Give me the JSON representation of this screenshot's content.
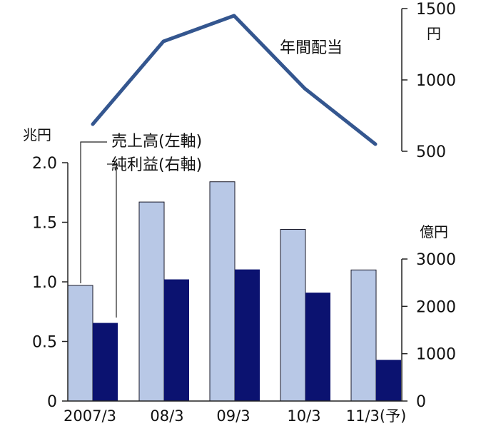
{
  "chart_data": {
    "type": "bar+line",
    "categories": [
      "2007/3",
      "08/3",
      "09/3",
      "10/3",
      "11/3(予)"
    ],
    "series": [
      {
        "name": "売上高(左軸)",
        "type": "bar",
        "axis": "left",
        "values": [
          0.97,
          1.67,
          1.84,
          1.44,
          1.1
        ],
        "color": "#b8c8e6"
      },
      {
        "name": "純利益(右軸)",
        "type": "bar",
        "axis": "right",
        "values": [
          1650,
          2570,
          2780,
          2290,
          870
        ],
        "color": "#0b1270"
      },
      {
        "name": "年間配当",
        "type": "line",
        "axis": "top-right",
        "values": [
          690,
          1270,
          1450,
          940,
          550
        ],
        "color": "#34568f"
      }
    ],
    "axes": {
      "left": {
        "unit": "兆円",
        "ticks": [
          "0",
          "0.5",
          "1.0",
          "1.5",
          "2.0"
        ],
        "range": [
          0,
          2.0
        ]
      },
      "right": {
        "unit": "億円",
        "ticks": [
          "0",
          "1000",
          "2000",
          "3000"
        ],
        "range": [
          0,
          3000
        ]
      },
      "top_right": {
        "unit": "円",
        "ticks": [
          "500",
          "1000",
          "1500"
        ],
        "range": [
          500,
          1500
        ]
      }
    },
    "grid": false
  }
}
